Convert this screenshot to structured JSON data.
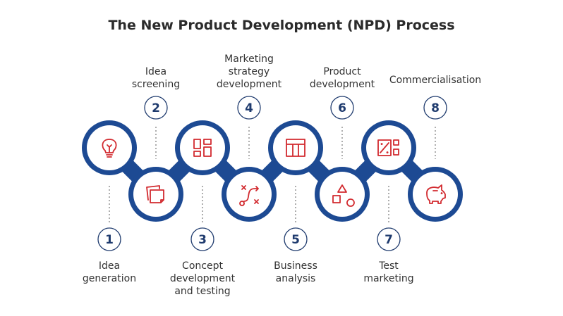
{
  "title": "The New Product Development (NPD) Process",
  "colors": {
    "ring": "#1d4a93",
    "icon": "#d22a2f",
    "number": "#1f3b6e",
    "text": "#333333"
  },
  "steps": [
    {
      "number": "1",
      "lines": [
        "Idea",
        "generation"
      ],
      "icon": "lightbulb-icon"
    },
    {
      "number": "2",
      "lines": [
        "Idea",
        "screening"
      ],
      "icon": "sticky-notes-icon"
    },
    {
      "number": "3",
      "lines": [
        "Concept",
        "development",
        "and testing"
      ],
      "icon": "grid-layout-icon"
    },
    {
      "number": "4",
      "lines": [
        "Marketing",
        "strategy",
        "development"
      ],
      "icon": "route-path-icon"
    },
    {
      "number": "5",
      "lines": [
        "Business",
        "analysis"
      ],
      "icon": "table-layout-icon"
    },
    {
      "number": "6",
      "lines": [
        "Product",
        "development"
      ],
      "icon": "shapes-icon"
    },
    {
      "number": "7",
      "lines": [
        "Test",
        "marketing"
      ],
      "icon": "percent-dashboard-icon"
    },
    {
      "number": "8",
      "lines": [
        "Commercialisation"
      ],
      "icon": "piggy-bank-icon"
    }
  ]
}
